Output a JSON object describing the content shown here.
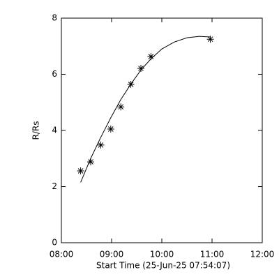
{
  "chart_data": {
    "type": "scatter",
    "xlabel": "Start Time (25-Jun-25 07:54:07)",
    "ylabel": "R/Rs",
    "x": [
      "08:23",
      "08:35",
      "08:47",
      "08:59",
      "09:11",
      "09:23",
      "09:35",
      "09:47",
      "10:58"
    ],
    "values": [
      2.56,
      2.88,
      3.48,
      4.05,
      4.84,
      5.64,
      6.21,
      6.63,
      7.25
    ],
    "fit": {
      "x": [
        "08:23",
        "08:35",
        "08:47",
        "08:59",
        "09:11",
        "09:23",
        "09:35",
        "09:47",
        "10:00",
        "10:15",
        "10:30",
        "10:45",
        "10:58"
      ],
      "values": [
        2.15,
        3.0,
        3.75,
        4.45,
        5.1,
        5.65,
        6.15,
        6.55,
        6.9,
        7.15,
        7.3,
        7.35,
        7.33
      ]
    },
    "color": "#000000",
    "xlim": [
      "08:00",
      "12:00"
    ],
    "xticks": [
      "08:00",
      "09:00",
      "10:00",
      "11:00",
      "12:00"
    ],
    "ylim": [
      0,
      8
    ],
    "yticks": [
      0,
      2,
      4,
      6,
      8
    ]
  }
}
